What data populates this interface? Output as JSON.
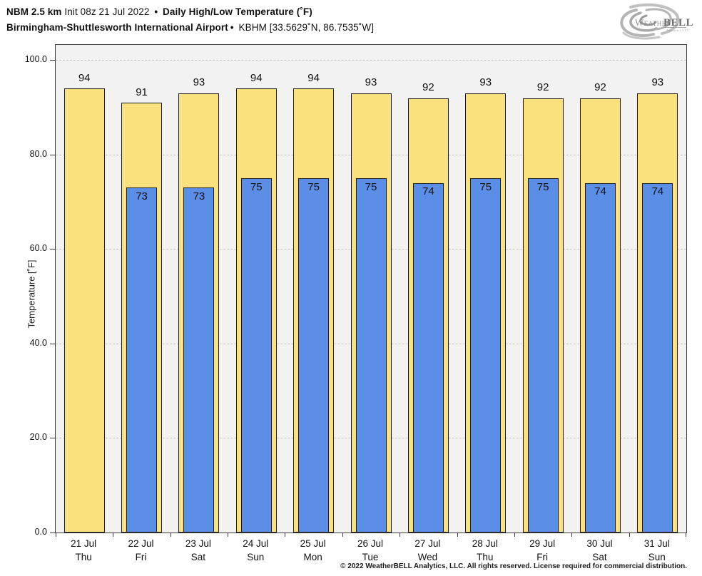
{
  "header": {
    "model": "NBM 2.5 km",
    "init": " Init 08z 21 Jul 2022 ",
    "sep": "•",
    "product": " Daily High/Low Temperature (˚F)",
    "station": "Birmingham-Shuttlesworth International Airport",
    "station_sep": "•",
    "station_id": " KBHM [33.5629˚N, 86.7535˚W]"
  },
  "logo": {
    "brand_weather": "Weather",
    "brand_bell": "BELL",
    "brand_sub": "Analytics LLC"
  },
  "chart_data": {
    "type": "bar",
    "title": "NBM 2.5 km Init 08z 21 Jul 2022 - Daily High/Low Temperature (°F) - Birmingham-Shuttlesworth International Airport - KBHM",
    "ylabel": "Temperature [˚F]",
    "ylim": [
      0,
      103.5
    ],
    "yticks": [
      0,
      20,
      40,
      60,
      80,
      100
    ],
    "ytick_labels": [
      "0.0",
      "20.0",
      "40.0",
      "60.0",
      "80.0",
      "100.0"
    ],
    "grid": "horizontal dash-dot",
    "legend_position": "none",
    "categories": [
      {
        "date": "21 Jul",
        "day": "Thu"
      },
      {
        "date": "22 Jul",
        "day": "Fri"
      },
      {
        "date": "23 Jul",
        "day": "Sat"
      },
      {
        "date": "24 Jul",
        "day": "Sun"
      },
      {
        "date": "25 Jul",
        "day": "Mon"
      },
      {
        "date": "26 Jul",
        "day": "Tue"
      },
      {
        "date": "27 Jul",
        "day": "Wed"
      },
      {
        "date": "28 Jul",
        "day": "Thu"
      },
      {
        "date": "29 Jul",
        "day": "Fri"
      },
      {
        "date": "30 Jul",
        "day": "Sat"
      },
      {
        "date": "31 Jul",
        "day": "Sun"
      }
    ],
    "series": [
      {
        "name": "Daily High",
        "color": "#fbe17e",
        "values": [
          94,
          91,
          93,
          94,
          94,
          93,
          92,
          93,
          92,
          92,
          93
        ]
      },
      {
        "name": "Daily Low",
        "color": "#5b8ee6",
        "values": [
          null,
          73,
          73,
          75,
          75,
          75,
          74,
          75,
          75,
          74,
          74
        ]
      }
    ]
  },
  "footer": {
    "copyright": "© 2022 WeatherBELL Analytics, LLC. All rights reserved. License required for commercial distribution."
  }
}
